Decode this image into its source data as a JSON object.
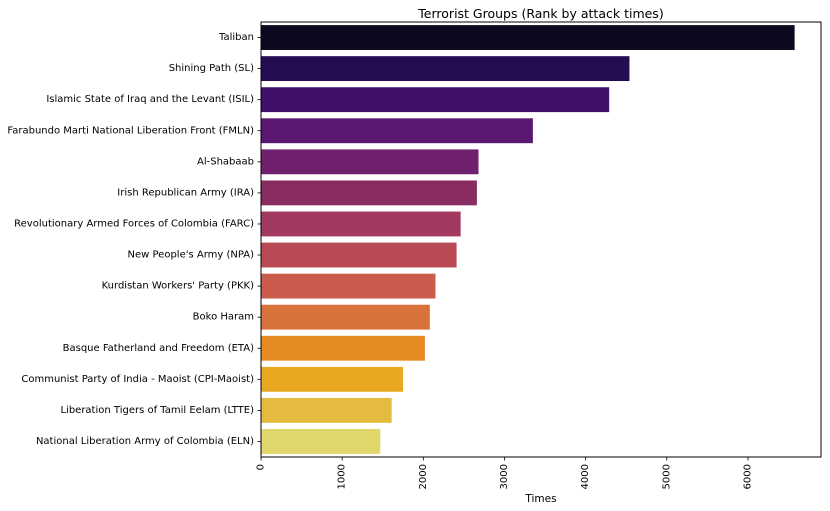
{
  "chart_data": {
    "type": "bar",
    "orientation": "horizontal",
    "title": "Terrorist Groups (Rank by attack times)",
    "xlabel": "Times",
    "ylabel": "",
    "xlim": [
      0,
      6900
    ],
    "xticks": [
      0,
      1000,
      2000,
      3000,
      4000,
      5000,
      6000
    ],
    "grid": false,
    "categories": [
      "Taliban",
      "Shining Path (SL)",
      "Islamic State of Iraq and the Levant (ISIL)",
      "Farabundo Marti National Liberation Front (FMLN)",
      "Al-Shabaab",
      "Irish Republican Army (IRA)",
      "Revolutionary Armed Forces of Colombia (FARC)",
      "New People's Army (NPA)",
      "Kurdistan Workers' Party (PKK)",
      "Boko Haram",
      "Basque Fatherland and Freedom (ETA)",
      "Communist Party of India - Maoist (CPI-Maoist)",
      "Liberation Tigers of Tamil Eelam (LTTE)",
      "National Liberation Army of Colombia (ELN)"
    ],
    "values": [
      6575,
      4540,
      4290,
      3350,
      2680,
      2660,
      2460,
      2410,
      2150,
      2080,
      2020,
      1750,
      1610,
      1470
    ],
    "colors": [
      "#0c081e",
      "#260c51",
      "#40106a",
      "#5b1871",
      "#6f216d",
      "#892c62",
      "#a13960",
      "#b94a55",
      "#cb5b4c",
      "#d8723a",
      "#e68b24",
      "#e8a821",
      "#e4bb3f",
      "#e1d86c"
    ]
  }
}
